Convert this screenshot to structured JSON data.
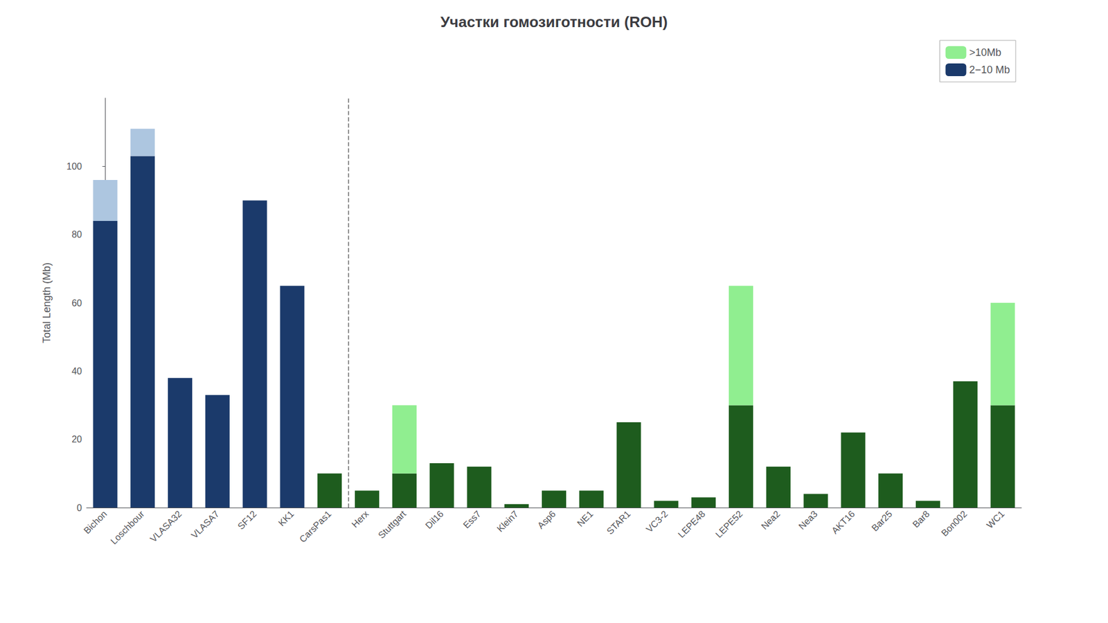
{
  "chart_data": {
    "type": "bar",
    "title": "Участки гомозиготности (ROH)",
    "ylabel": "Total Length (Mb)",
    "categories": [
      "Bichon",
      "Loschbour",
      "VLASA32",
      "VLASA7",
      "SF12",
      "KK1",
      "CarsPas1",
      "Herx",
      "Stuttgart",
      "Dil16",
      "Ess7",
      "Klein7",
      "Asp6",
      "NE1",
      "STAR1",
      "VC3-2",
      "LEPE48",
      "LEPE52",
      "Nea2",
      "Nea3",
      "AKT16",
      "Bar25",
      "Bar8",
      "Bon002",
      "WC1"
    ],
    "series": [
      {
        "name": "2−10 Mb",
        "color": "#1b3a6b",
        "values": [
          84,
          103,
          38,
          33,
          90,
          65,
          10,
          5,
          10,
          13,
          12,
          1,
          5,
          5,
          25,
          2,
          3,
          30,
          12,
          4,
          22,
          10,
          2,
          37,
          30
        ],
        "colors": [
          "#1b3a6b",
          "#1b3a6b",
          "#1b3a6b",
          "#1b3a6b",
          "#1b3a6b",
          "#1b3a6b",
          "#1e5c1e",
          "#1e5c1e",
          "#1e5c1e",
          "#1e5c1e",
          "#1e5c1e",
          "#1e5c1e",
          "#1e5c1e",
          "#1e5c1e",
          "#1e5c1e",
          "#1e5c1e",
          "#1e5c1e",
          "#1e5c1e",
          "#1e5c1e",
          "#1e5c1e",
          "#1e5c1e",
          "#1e5c1e",
          "#1e5c1e",
          "#1e5c1e",
          "#1e5c1e"
        ]
      },
      {
        "name": ">10Mb",
        "color": "#90ee90",
        "values": [
          12,
          8,
          0,
          0,
          0,
          0,
          0,
          0,
          20,
          0,
          0,
          0,
          0,
          0,
          0,
          0,
          0,
          35,
          0,
          0,
          0,
          0,
          0,
          0,
          30
        ],
        "colors": [
          "#adc6e0",
          "#adc6e0",
          "#adc6e0",
          "#adc6e0",
          "#adc6e0",
          "#adc6e0",
          "#90ee90",
          "#90ee90",
          "#90ee90",
          "#90ee90",
          "#90ee90",
          "#90ee90",
          "#90ee90",
          "#90ee90",
          "#90ee90",
          "#90ee90",
          "#90ee90",
          "#90ee90",
          "#90ee90",
          "#90ee90",
          "#90ee90",
          "#90ee90",
          "#90ee90",
          "#90ee90",
          "#90ee90"
        ]
      }
    ],
    "stacked": true,
    "divider_x": 6.5,
    "ylim": [
      0,
      120
    ],
    "yticks": [
      0,
      20,
      40,
      60,
      80,
      100
    ],
    "grid": false,
    "legend": "upper right"
  }
}
